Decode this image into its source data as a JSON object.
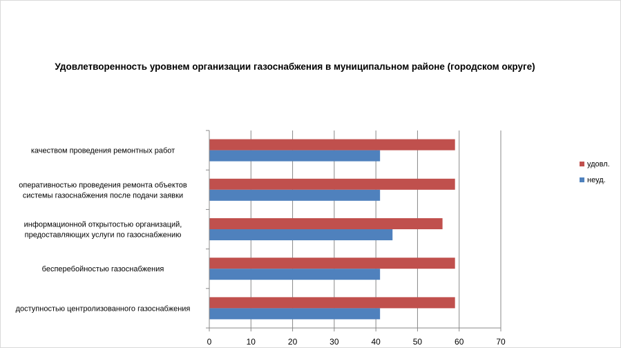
{
  "chart_data": {
    "type": "bar",
    "orientation": "horizontal",
    "title": "Удовлетворенность уровнем организации газоснабжения в муниципальном районе (городском округе)",
    "categories": [
      "качеством проведения ремонтных работ",
      "оперативностью проведения ремонта объектов системы газоснабжения после подачи заявки",
      "информационной открытостью организаций, предоставляющих услуги по газоснабжению",
      "бесперебойностью  газоснабжения",
      "доступностью центролизованного газоснабжения"
    ],
    "category_lines": [
      [
        "качеством проведения ремонтных работ"
      ],
      [
        "оперативностью проведения ремонта объектов",
        "системы газоснабжения после подачи заявки"
      ],
      [
        "информационной открытостью организаций,",
        "предоставляющих услуги по газоснабжению"
      ],
      [
        "бесперебойностью  газоснабжения"
      ],
      [
        "доступностью центролизованного газоснабжения"
      ]
    ],
    "series": [
      {
        "name": "удовл.",
        "color": "#c0504d",
        "values": [
          59,
          59,
          56,
          59,
          59
        ]
      },
      {
        "name": "неуд.",
        "color": "#4f81bd",
        "values": [
          41,
          41,
          44,
          41,
          41
        ]
      }
    ],
    "xlim": [
      0,
      70
    ],
    "xticks": [
      0,
      10,
      20,
      30,
      40,
      50,
      60,
      70
    ],
    "grid": true,
    "legend_position": "right"
  }
}
